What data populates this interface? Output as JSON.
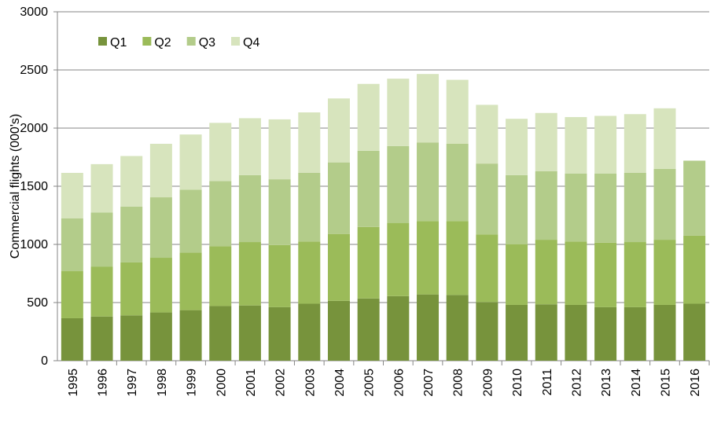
{
  "chart_data": {
    "type": "stacked_bar",
    "y_label": "Commercial flights (000's)",
    "categories": [
      "1995",
      "1996",
      "1997",
      "1998",
      "1999",
      "2000",
      "2001",
      "2002",
      "2003",
      "2004",
      "2005",
      "2006",
      "2007",
      "2008",
      "2009",
      "2010",
      "2011",
      "2012",
      "2013",
      "2014",
      "2015",
      "2016"
    ],
    "series": [
      {
        "name": "Q1",
        "color": "#77933c",
        "values": [
          365,
          380,
          390,
          415,
          435,
          470,
          475,
          460,
          490,
          515,
          535,
          555,
          570,
          565,
          505,
          480,
          485,
          480,
          460,
          460,
          480,
          490
        ]
      },
      {
        "name": "Q2",
        "color": "#9bbb59",
        "values": [
          405,
          430,
          455,
          470,
          495,
          515,
          545,
          535,
          535,
          575,
          615,
          630,
          630,
          635,
          580,
          520,
          555,
          545,
          555,
          560,
          560,
          585
        ]
      },
      {
        "name": "Q3",
        "color": "#b3cc8a",
        "values": [
          453,
          465,
          480,
          520,
          540,
          560,
          575,
          565,
          590,
          615,
          655,
          660,
          675,
          665,
          610,
          595,
          590,
          585,
          595,
          595,
          610,
          645
        ]
      },
      {
        "name": "Q4",
        "color": "#d7e4bd",
        "values": [
          392,
          415,
          435,
          460,
          475,
          500,
          490,
          515,
          520,
          550,
          575,
          580,
          590,
          550,
          505,
          485,
          500,
          485,
          495,
          505,
          520,
          null
        ]
      }
    ],
    "ylim": [
      0,
      3000
    ],
    "yticks": [
      0,
      500,
      1000,
      1500,
      2000,
      2500,
      3000
    ],
    "grid": true,
    "legend": "top-left"
  }
}
